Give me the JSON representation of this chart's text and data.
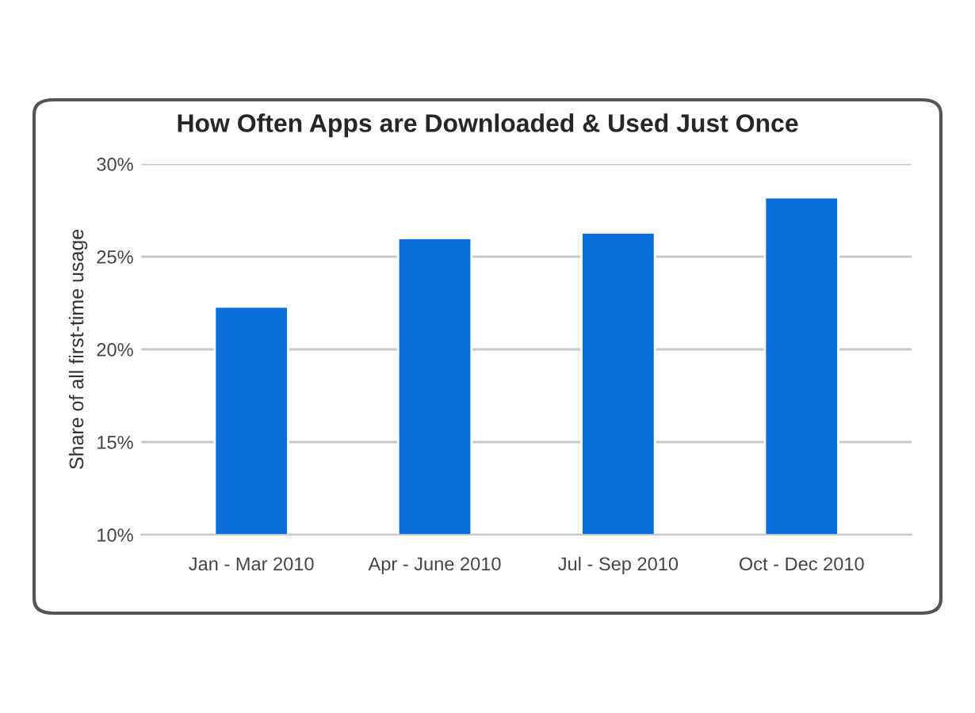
{
  "chart_data": {
    "type": "bar",
    "title": "How Often Apps are Downloaded & Used Just Once",
    "ylabel": "Share of all first-time usage",
    "categories": [
      "Jan - Mar 2010",
      "Apr - June 2010",
      "Jul - Sep 2010",
      "Oct - Dec 2010"
    ],
    "values": [
      22.3,
      26.0,
      26.3,
      28.2
    ],
    "color": "#0a6fdc",
    "ylim": [
      10,
      30
    ],
    "yticks": [
      {
        "value": 10,
        "label": "10%"
      },
      {
        "value": 15,
        "label": "15%"
      },
      {
        "value": 20,
        "label": "20%"
      },
      {
        "value": 25,
        "label": "25%"
      },
      {
        "value": 30,
        "label": "30%"
      }
    ],
    "grid": "y"
  }
}
